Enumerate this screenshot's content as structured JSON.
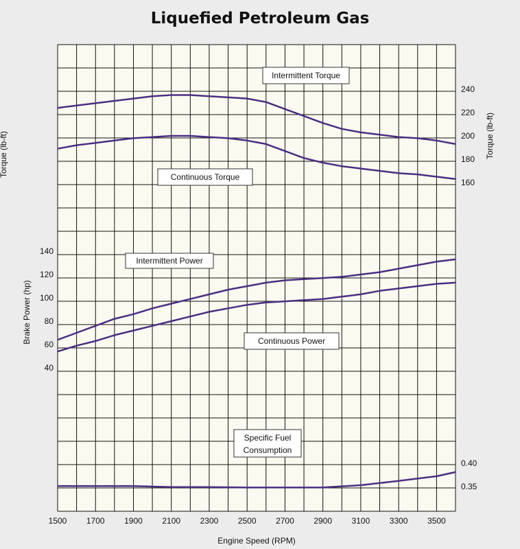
{
  "chart_data": {
    "type": "line",
    "title": "Liquefied Petroleum Gas",
    "xlabel": "Engine Speed (RPM)",
    "xlim": [
      1500,
      3600
    ],
    "xticks": [
      1500,
      1700,
      1900,
      2100,
      2300,
      2500,
      2700,
      2900,
      3100,
      3300,
      3500
    ],
    "left_axes": [
      {
        "label": "Brake Power (hp)",
        "ticks": [
          "140",
          "120",
          "100",
          "80",
          "60",
          "40"
        ]
      },
      {
        "label": "Torque (lb-ft)",
        "note": "partially cut off at left edge"
      }
    ],
    "right_axes": [
      {
        "label": "Torque (lb-ft)",
        "ticks": [
          "240",
          "220",
          "200",
          "180",
          "160"
        ]
      },
      {
        "label": "",
        "ticks": [
          "0.40",
          "0.35"
        ]
      }
    ],
    "grid": true,
    "series": [
      {
        "name": "Intermittent Torque",
        "unit": "lb-ft",
        "color": "#4b2e83",
        "x": [
          1500,
          1600,
          1700,
          1800,
          1900,
          2000,
          2100,
          2200,
          2300,
          2400,
          2500,
          2600,
          2700,
          2800,
          2900,
          3000,
          3100,
          3200,
          3300,
          3400,
          3500,
          3600
        ],
        "y": [
          224,
          226,
          228,
          230,
          232,
          234,
          235,
          235,
          234,
          233,
          232,
          229,
          223,
          217,
          211,
          206,
          203,
          201,
          199,
          198,
          196,
          193
        ]
      },
      {
        "name": "Continuous Torque",
        "unit": "lb-ft",
        "color": "#4b2e83",
        "x": [
          1500,
          1600,
          1700,
          1800,
          1900,
          2000,
          2100,
          2200,
          2300,
          2400,
          2500,
          2600,
          2700,
          2800,
          2900,
          3000,
          3100,
          3200,
          3300,
          3400,
          3500,
          3600
        ],
        "y": [
          189,
          192,
          194,
          196,
          198,
          199,
          200,
          200,
          199,
          198,
          196,
          193,
          187,
          181,
          177,
          174,
          172,
          170,
          168,
          167,
          165,
          163
        ]
      },
      {
        "name": "Intermittent Power",
        "unit": "hp",
        "color": "#4b2e83",
        "x": [
          1500,
          1600,
          1700,
          1800,
          1900,
          2000,
          2100,
          2200,
          2300,
          2400,
          2500,
          2600,
          2700,
          2800,
          2900,
          3000,
          3100,
          3200,
          3300,
          3400,
          3500,
          3600
        ],
        "y": [
          64,
          70,
          76,
          82,
          86,
          91,
          95,
          99,
          103,
          107,
          110,
          113,
          115,
          116,
          117,
          118,
          120,
          122,
          125,
          128,
          131,
          133
        ]
      },
      {
        "name": "Continuous Power",
        "unit": "hp",
        "color": "#4b2e83",
        "x": [
          1500,
          1600,
          1700,
          1800,
          1900,
          2000,
          2100,
          2200,
          2300,
          2400,
          2500,
          2600,
          2700,
          2800,
          2900,
          3000,
          3100,
          3200,
          3300,
          3400,
          3500,
          3600
        ],
        "y": [
          54,
          59,
          63,
          68,
          72,
          76,
          80,
          84,
          88,
          91,
          94,
          96,
          97,
          98,
          99,
          101,
          103,
          106,
          108,
          110,
          112,
          113
        ]
      },
      {
        "name": "Specific Fuel Consumption",
        "color": "#4b2e83",
        "x": [
          1500,
          1700,
          1900,
          2100,
          2300,
          2500,
          2700,
          2900,
          3100,
          3300,
          3500,
          3600
        ],
        "y": [
          0.351,
          0.351,
          0.351,
          0.349,
          0.349,
          0.348,
          0.348,
          0.348,
          0.353,
          0.362,
          0.372,
          0.381
        ]
      }
    ]
  },
  "labels": {
    "intermittent_torque": "Intermittent Torque",
    "continuous_torque": "Continuous Torque",
    "intermittent_power": "Intermittent Power",
    "continuous_power": "Continuous Power",
    "sfc_line1": "Specific Fuel",
    "sfc_line2": "Consumption"
  },
  "colors": {
    "background": "#ececec",
    "plot_area": "#fbfaf0",
    "grid": "#111111",
    "line": "#4b2e83"
  }
}
